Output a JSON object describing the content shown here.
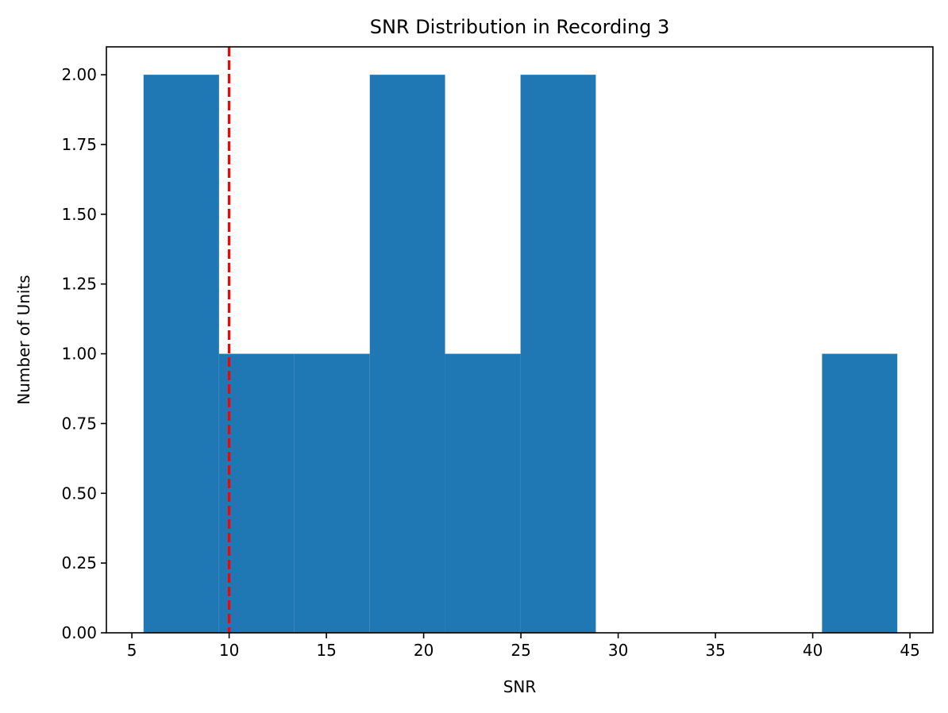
{
  "chart_data": {
    "type": "bar",
    "subtype": "histogram",
    "title": "SNR Distribution in Recording 3",
    "xlabel": "SNR",
    "ylabel": "Number of Units",
    "bin_edges": [
      5.6,
      9.48,
      13.35,
      17.23,
      21.1,
      24.98,
      28.85,
      32.73,
      36.6,
      40.48,
      44.35
    ],
    "values": [
      2,
      1,
      1,
      2,
      1,
      2,
      0,
      0,
      0,
      1
    ],
    "xlim": [
      3.69,
      46.18
    ],
    "ylim": [
      0,
      2.1
    ],
    "xticks": [
      5,
      10,
      15,
      20,
      25,
      30,
      35,
      40,
      45
    ],
    "xtick_labels": [
      "5",
      "10",
      "15",
      "20",
      "25",
      "30",
      "35",
      "40",
      "45"
    ],
    "yticks": [
      0,
      0.25,
      0.5,
      0.75,
      1.0,
      1.25,
      1.5,
      1.75,
      2.0
    ],
    "ytick_labels": [
      "0.00",
      "0.25",
      "0.50",
      "0.75",
      "1.00",
      "1.25",
      "1.50",
      "1.75",
      "2.00"
    ],
    "threshold_line": {
      "x": 10,
      "style": "dashed"
    },
    "grid": false,
    "colors": {
      "bar": "#1f77b4",
      "threshold": "#ff0000"
    }
  }
}
